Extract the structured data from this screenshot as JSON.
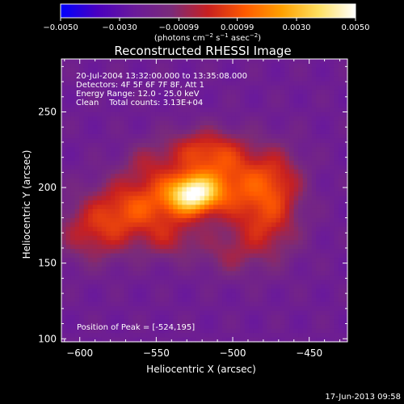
{
  "chart_data": {
    "type": "heatmap",
    "title": "Reconstructed RHESSI Image",
    "xlabel": "Heliocentric X (arcsec)",
    "ylabel": "Heliocentric Y (arcsec)",
    "xlim": [
      -612,
      -425
    ],
    "ylim": [
      98,
      285
    ],
    "x_ticks": [
      -600,
      -550,
      -500,
      -450
    ],
    "y_ticks": [
      100,
      150,
      200,
      250
    ],
    "x_tick_labels": [
      "−600",
      "−550",
      "−500",
      "−450"
    ],
    "y_tick_labels": [
      "100",
      "150",
      "200",
      "250"
    ],
    "colorbar": {
      "range": [
        -0.005,
        0.005
      ],
      "tick_labels": [
        "−0.0050",
        "−0.0030",
        "−0.00099",
        "0.00099",
        "0.0030",
        "0.0050"
      ],
      "tick_values": [
        -0.005,
        -0.003,
        -0.00099,
        0.00099,
        0.003,
        0.005
      ],
      "units_prefix": "(photons cm",
      "units_exp1": "−2",
      "units_mid": " s",
      "units_exp2": "−1",
      "units_mid2": " asec",
      "units_exp3": "−2",
      "units_suffix": ")",
      "colors": [
        "#0000ff",
        "#4a00c0",
        "#6a1a9a",
        "#7a2b7a",
        "#c82020",
        "#ff5a00",
        "#ffa000",
        "#ffe060",
        "#ffffff"
      ]
    },
    "annotations": [
      "20-Jul-2004 13:32:00.000 to 13:35:08.000",
      "Detectors: 4F 5F 6F 7F 8F, Att 1",
      "Energy Range: 12.0 - 25.0 keV",
      "Clean    Total counts: 3.13E+04"
    ],
    "peak_label": "Position of Peak = [-524,195]",
    "peak": [
      -524,
      195
    ],
    "sources": [
      {
        "x": -526,
        "y": 196,
        "amp": 0.0058,
        "sx": 12,
        "sy": 9
      },
      {
        "x": -560,
        "y": 188,
        "amp": 0.0029,
        "sx": 22,
        "sy": 14
      },
      {
        "x": -500,
        "y": 205,
        "amp": 0.0026,
        "sx": 20,
        "sy": 16
      },
      {
        "x": -520,
        "y": 225,
        "amp": 0.0022,
        "sx": 18,
        "sy": 10
      },
      {
        "x": -480,
        "y": 175,
        "amp": 0.0022,
        "sx": 16,
        "sy": 18
      },
      {
        "x": -470,
        "y": 205,
        "amp": 0.0016,
        "sx": 12,
        "sy": 16
      },
      {
        "x": -590,
        "y": 170,
        "amp": 0.002,
        "sx": 18,
        "sy": 14
      },
      {
        "x": -540,
        "y": 165,
        "amp": 0.0014,
        "sx": 14,
        "sy": 10
      },
      {
        "x": -555,
        "y": 215,
        "amp": 0.0012,
        "sx": 12,
        "sy": 10
      },
      {
        "x": -505,
        "y": 155,
        "amp": 0.001,
        "sx": 12,
        "sy": 10
      }
    ],
    "background": -0.0022,
    "grid": false
  },
  "footer": {
    "timestamp": "17-Jun-2013 09:58"
  }
}
